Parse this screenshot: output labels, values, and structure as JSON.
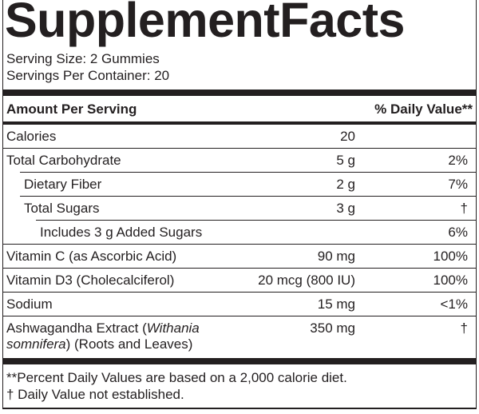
{
  "title": "SupplementFacts",
  "serving_size": "Serving Size: 2 Gummies",
  "servings_per_container": "Servings Per Container: 20",
  "header": {
    "amount": "Amount Per Serving",
    "daily_value": "% Daily Value**"
  },
  "rows": [
    {
      "name": "Calories",
      "amount": "20"
    },
    {
      "name": "Total Carbohydrate",
      "amount": "5 g",
      "dv": "2%"
    },
    {
      "name": "Dietary Fiber",
      "amount": "2 g",
      "dv": "7%"
    },
    {
      "name": "Total Sugars",
      "amount": "3 g",
      "dv": "†"
    },
    {
      "name": "Includes 3 g Added Sugars",
      "dv": "6%"
    },
    {
      "name": "Vitamin C (as Ascorbic Acid)",
      "amount": "90 mg",
      "dv": "100%"
    },
    {
      "name": "Vitamin D3 (Cholecalciferol)",
      "amount": "20 mcg (800 IU)",
      "dv": "100%"
    },
    {
      "name": "Sodium",
      "amount": "15 mg",
      "dv": "<1%"
    },
    {
      "name_parts": [
        "Ashwagandha Extract (",
        "Withania somnifera",
        ") (Roots and Leaves)"
      ],
      "amount": "350 mg",
      "dv": "†"
    }
  ],
  "footnotes": [
    "**Percent Daily Values are based on a 2,000 calorie diet.",
    "† Daily Value not established."
  ]
}
